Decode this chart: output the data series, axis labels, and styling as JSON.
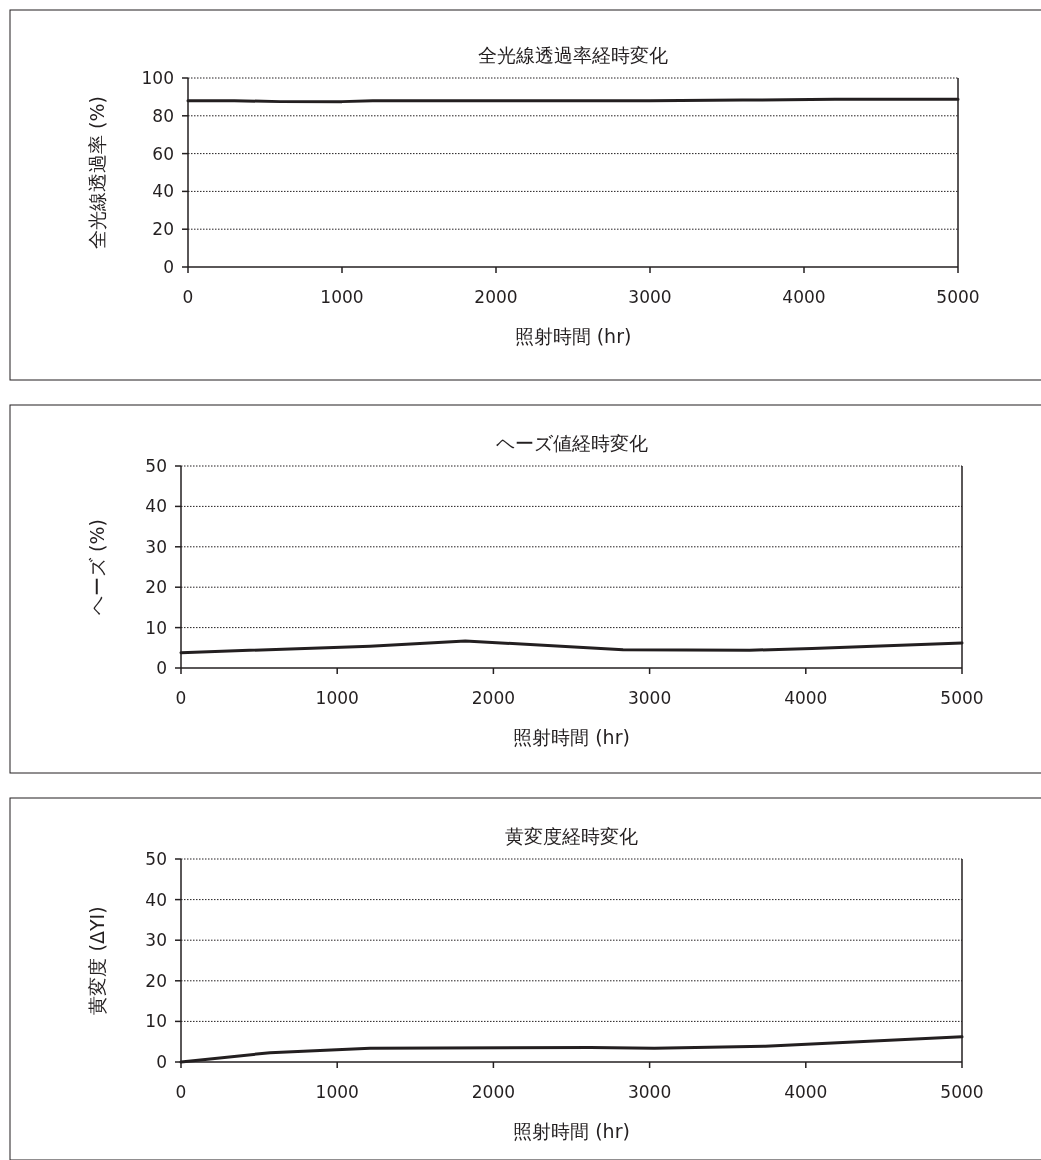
{
  "chart_data": [
    {
      "type": "line",
      "title": "全光線透過率経時変化",
      "xlabel": "照射時間 (hr)",
      "ylabel": "全光線透過率 (%)",
      "x": [
        0,
        300,
        600,
        1000,
        1200,
        3000,
        3600,
        4200,
        5000
      ],
      "series": [
        {
          "color": "#231f20",
          "values": [
            88,
            88,
            87.5,
            87.5,
            88,
            88,
            88.3,
            88.7,
            88.7
          ]
        }
      ],
      "xlim": [
        0,
        5000
      ],
      "xticks": [
        0,
        1000,
        2000,
        3000,
        4000,
        5000
      ],
      "ylim": [
        0,
        100
      ],
      "yticks": [
        0,
        20,
        40,
        60,
        80,
        100
      ],
      "grid": "y",
      "marker": "none",
      "line_style": "solid"
    },
    {
      "type": "line",
      "title": "ヘーズ値経時変化",
      "xlabel": "照射時間 (hr)",
      "ylabel": "ヘーズ (%)",
      "x": [
        0,
        1210,
        1820,
        2830,
        3640,
        4040,
        5000
      ],
      "series": [
        {
          "color": "#231f20",
          "values": [
            3.8,
            5.4,
            6.7,
            4.5,
            4.4,
            4.8,
            6.2
          ]
        }
      ],
      "xlim": [
        0,
        5000
      ],
      "xticks": [
        0,
        1000,
        2000,
        3000,
        4000,
        5000
      ],
      "ylim": [
        0,
        50
      ],
      "yticks": [
        0,
        10,
        20,
        30,
        40,
        50
      ],
      "grid": "y",
      "marker": "none",
      "line_style": "solid"
    },
    {
      "type": "line",
      "title": "黄変度経時変化",
      "xlabel": "照射時間 (hr)",
      "ylabel": "黄変度 (ΔYI)",
      "x": [
        0,
        570,
        1210,
        2620,
        3030,
        3740,
        5000
      ],
      "series": [
        {
          "color": "#231f20",
          "values": [
            0,
            2.3,
            3.4,
            3.6,
            3.4,
            3.9,
            6.2
          ]
        }
      ],
      "xlim": [
        0,
        5000
      ],
      "xticks": [
        0,
        1000,
        2000,
        3000,
        4000,
        5000
      ],
      "ylim": [
        0,
        50
      ],
      "yticks": [
        0,
        10,
        20,
        30,
        40,
        50
      ],
      "grid": "y",
      "marker": "none",
      "line_style": "solid"
    }
  ]
}
